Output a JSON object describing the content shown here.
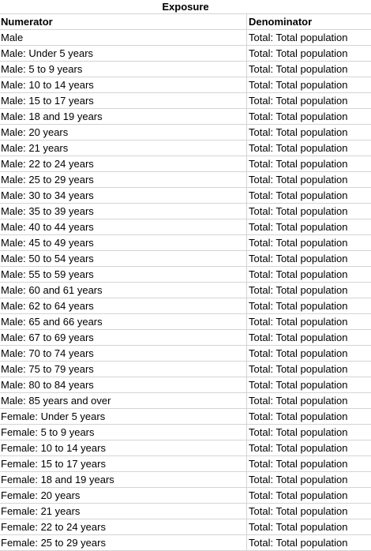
{
  "title": "Exposure",
  "columns": [
    "Numerator",
    "Denominator"
  ],
  "rows": [
    [
      "Male",
      "Total: Total population"
    ],
    [
      "Male: Under 5 years",
      "Total: Total population"
    ],
    [
      "Male: 5 to 9 years",
      "Total: Total population"
    ],
    [
      "Male: 10 to 14 years",
      "Total: Total population"
    ],
    [
      "Male: 15 to 17 years",
      "Total: Total population"
    ],
    [
      "Male: 18 and 19 years",
      "Total: Total population"
    ],
    [
      "Male: 20 years",
      "Total: Total population"
    ],
    [
      "Male: 21 years",
      "Total: Total population"
    ],
    [
      "Male: 22 to 24 years",
      "Total: Total population"
    ],
    [
      "Male: 25 to 29 years",
      "Total: Total population"
    ],
    [
      "Male: 30 to 34 years",
      "Total: Total population"
    ],
    [
      "Male: 35 to 39 years",
      "Total: Total population"
    ],
    [
      "Male: 40 to 44 years",
      "Total: Total population"
    ],
    [
      "Male: 45 to 49 years",
      "Total: Total population"
    ],
    [
      "Male: 50 to 54 years",
      "Total: Total population"
    ],
    [
      "Male: 55 to 59 years",
      "Total: Total population"
    ],
    [
      "Male: 60 and 61 years",
      "Total: Total population"
    ],
    [
      "Male: 62 to 64 years",
      "Total: Total population"
    ],
    [
      "Male: 65 and 66 years",
      "Total: Total population"
    ],
    [
      "Male: 67 to 69 years",
      "Total: Total population"
    ],
    [
      "Male: 70 to 74 years",
      "Total: Total population"
    ],
    [
      "Male: 75 to 79 years",
      "Total: Total population"
    ],
    [
      "Male: 80 to 84 years",
      "Total: Total population"
    ],
    [
      "Male: 85 years and over",
      "Total: Total population"
    ],
    [
      "Female: Under 5 years",
      "Total: Total population"
    ],
    [
      "Female: 5 to 9 years",
      "Total: Total population"
    ],
    [
      "Female: 10 to 14 years",
      "Total: Total population"
    ],
    [
      "Female: 15 to 17 years",
      "Total: Total population"
    ],
    [
      "Female: 18 and 19 years",
      "Total: Total population"
    ],
    [
      "Female: 20 years",
      "Total: Total population"
    ],
    [
      "Female: 21 years",
      "Total: Total population"
    ],
    [
      "Female: 22 to 24 years",
      "Total: Total population"
    ],
    [
      "Female: 25 to 29 years",
      "Total: Total population"
    ]
  ]
}
